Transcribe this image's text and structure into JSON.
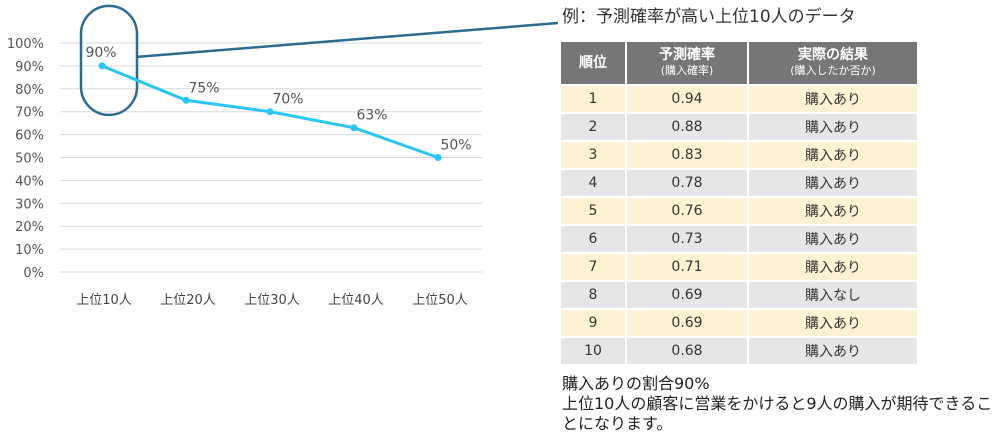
{
  "chart_data": {
    "type": "line",
    "categories": [
      "上位10人",
      "上位20人",
      "上位30人",
      "上位40人",
      "上位50人"
    ],
    "values": [
      90,
      75,
      70,
      63,
      50
    ],
    "data_labels": [
      "90%",
      "75%",
      "70%",
      "63%",
      "50%"
    ],
    "yticks": [
      "0%",
      "10%",
      "20%",
      "30%",
      "40%",
      "50%",
      "60%",
      "70%",
      "80%",
      "90%",
      "100%"
    ],
    "ylim": [
      0,
      100
    ],
    "grid": true,
    "line_color": "#29c5f6",
    "highlight_color": "#2e6b91"
  },
  "example": {
    "title": "例：予測確率が高い上位10人のデータ",
    "headers": {
      "rank": "順位",
      "prob": "予測確率",
      "prob_sub": "(購入確率)",
      "result": "実際の結果",
      "result_sub": "(購入したか否か)"
    },
    "rows": [
      {
        "rank": "1",
        "prob": "0.94",
        "result": "購入あり"
      },
      {
        "rank": "2",
        "prob": "0.88",
        "result": "購入あり"
      },
      {
        "rank": "3",
        "prob": "0.83",
        "result": "購入あり"
      },
      {
        "rank": "4",
        "prob": "0.78",
        "result": "購入あり"
      },
      {
        "rank": "5",
        "prob": "0.76",
        "result": "購入あり"
      },
      {
        "rank": "6",
        "prob": "0.73",
        "result": "購入あり"
      },
      {
        "rank": "7",
        "prob": "0.71",
        "result": "購入あり"
      },
      {
        "rank": "8",
        "prob": "0.69",
        "result": "購入なし"
      },
      {
        "rank": "9",
        "prob": "0.69",
        "result": "購入あり"
      },
      {
        "rank": "10",
        "prob": "0.68",
        "result": "購入あり"
      }
    ]
  },
  "conclusion": {
    "line1": "購入ありの割合90%",
    "line2": "上位10人の顧客に営業をかけると9人の購入が期待できることになります。"
  }
}
